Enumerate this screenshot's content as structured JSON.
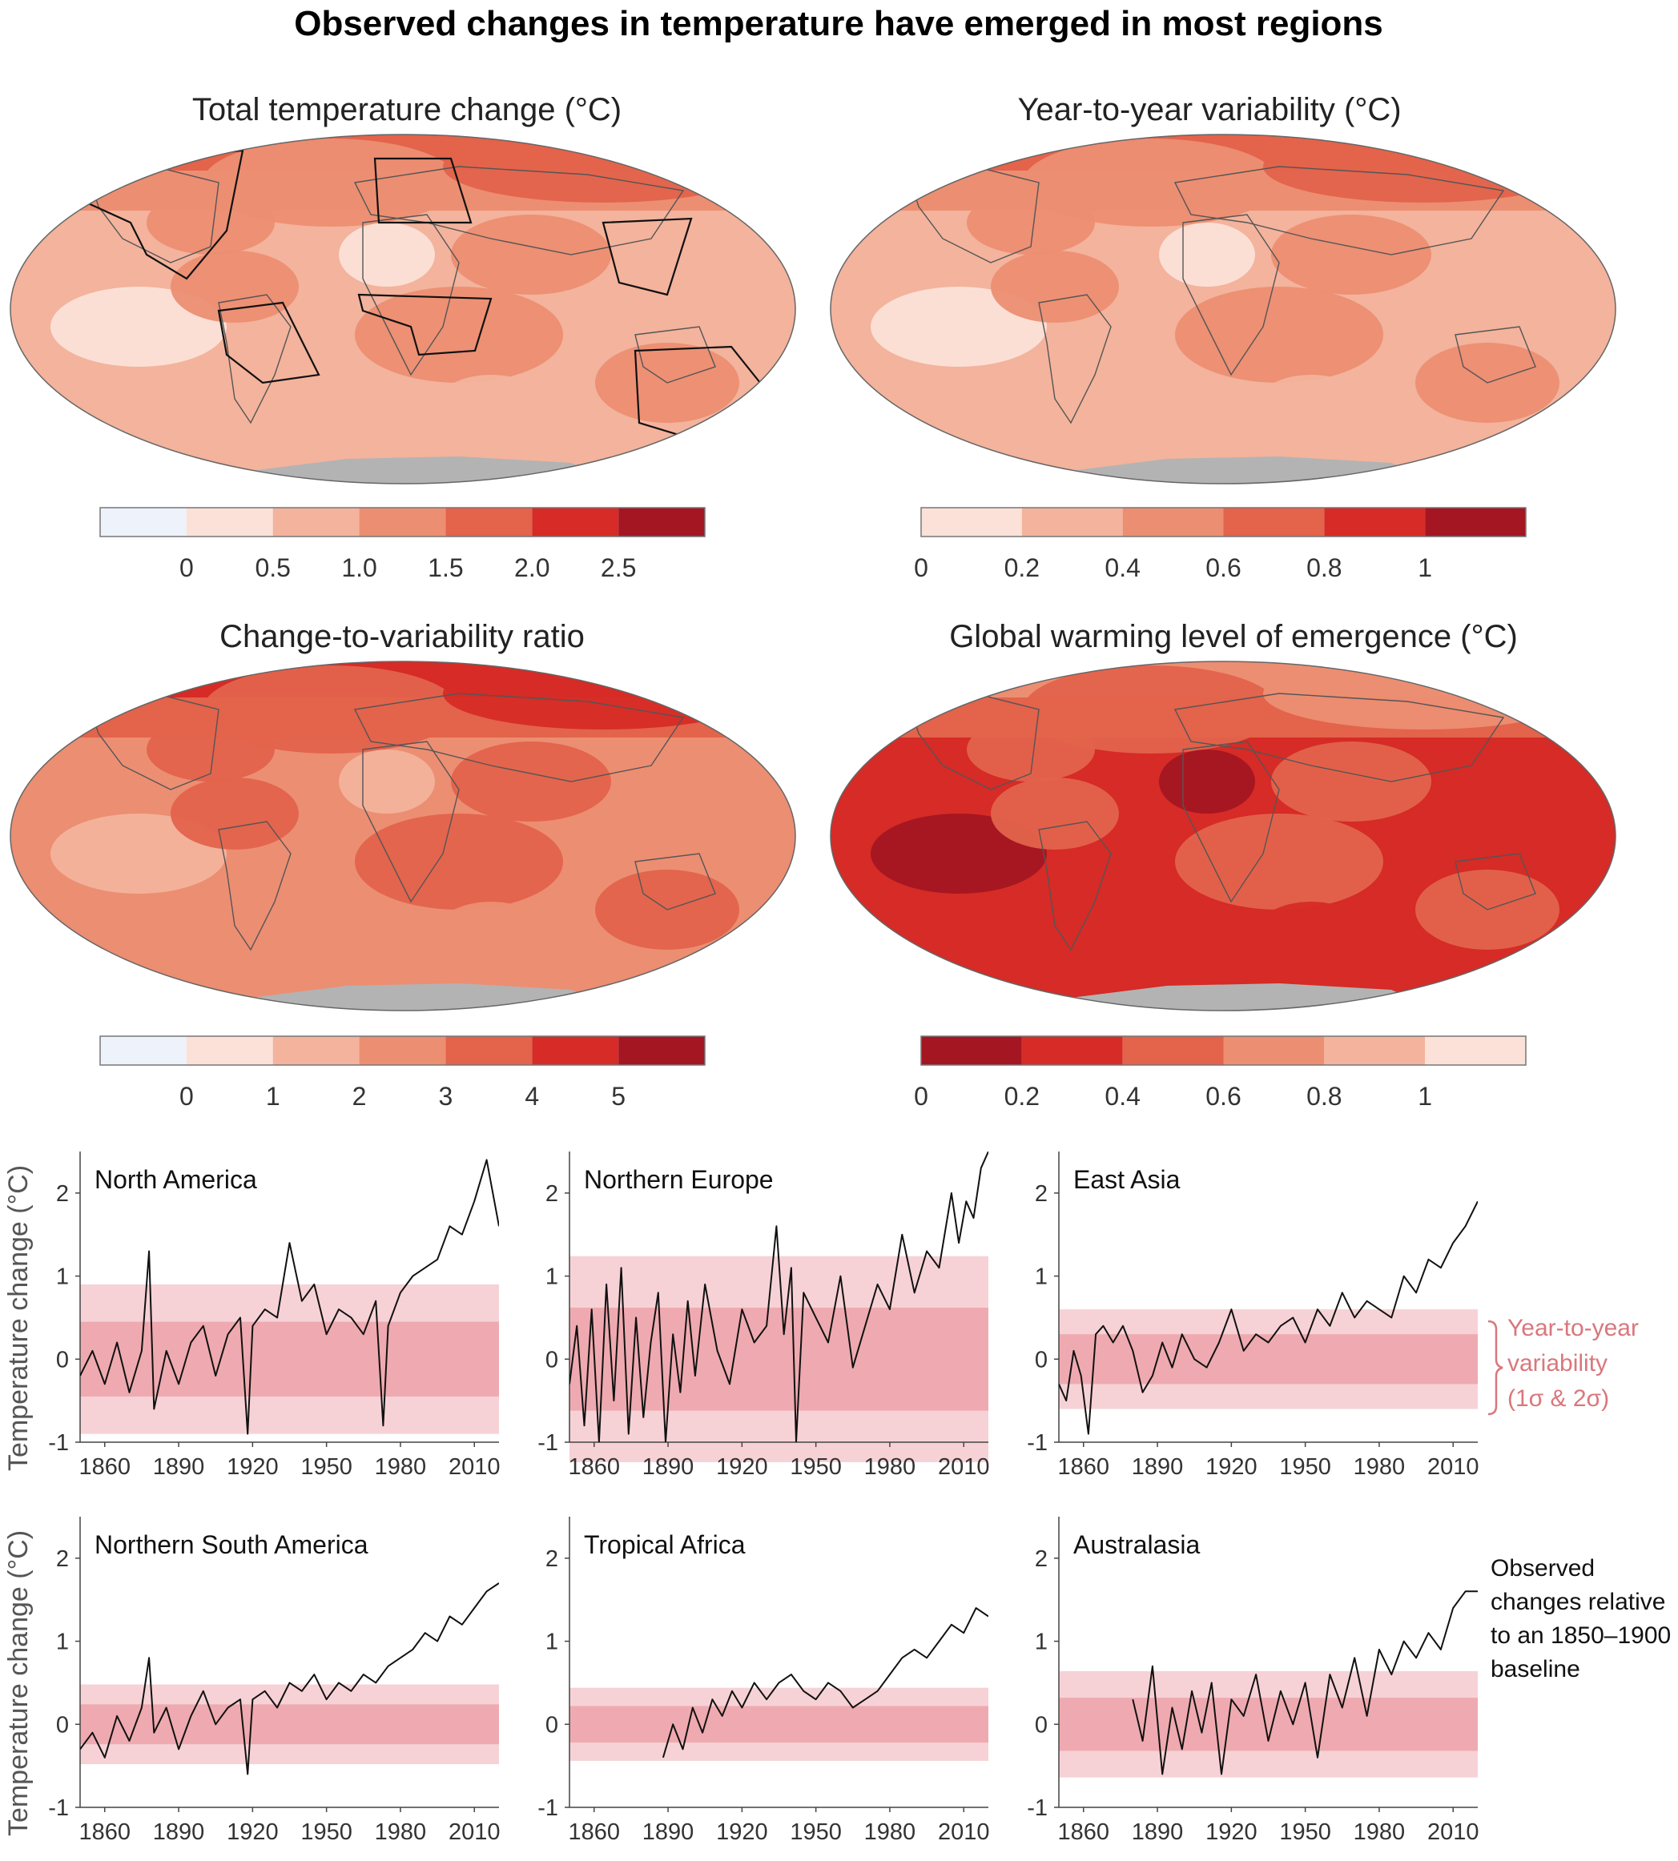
{
  "title": "Observed changes in temperature have emerged in most regions",
  "palettes": {
    "reds": [
      "#fbe1d8",
      "#f3b39c",
      "#ec8e72",
      "#e3634b",
      "#d62b26",
      "#a31622"
    ],
    "reds_with_blue": [
      "#eef2fa",
      "#fbe1d8",
      "#f3b39c",
      "#ec8e72",
      "#e3634b",
      "#d62b26",
      "#a31622"
    ],
    "reds_reversed": [
      "#a31622",
      "#d62b26",
      "#e3634b",
      "#ec8e72",
      "#f3b39c",
      "#fbe1d8"
    ],
    "missing": "#b3b3b3",
    "band_outer": "#f6d2d6",
    "band_inner": "#eeaab0"
  },
  "maps": [
    {
      "title": "Total temperature change (°C)",
      "ticks": [
        "0",
        "0.5",
        "1.0",
        "1.5",
        "2.0",
        "2.5"
      ],
      "palette": "reds_with_blue",
      "dominant_class": 2,
      "has_region_outlines": true
    },
    {
      "title": "Year-to-year variability (°C)",
      "ticks": [
        "0",
        "0.2",
        "0.4",
        "0.6",
        "0.8",
        "1"
      ],
      "palette": "reds",
      "dominant_class": 1,
      "has_region_outlines": false
    },
    {
      "title": "Change-to-variability ratio",
      "ticks": [
        "0",
        "1",
        "2",
        "3",
        "4",
        "5"
      ],
      "palette": "reds_with_blue",
      "dominant_class": 3,
      "has_region_outlines": false
    },
    {
      "title": "Global warming level of emergence (°C)",
      "ticks": [
        "0",
        "0.2",
        "0.4",
        "0.6",
        "0.8",
        "1"
      ],
      "palette": "reds_reversed",
      "dominant_class": 1,
      "has_region_outlines": false
    }
  ],
  "timeseries_axis": {
    "ylabel": "Temperature change (°C)",
    "x_ticks": [
      1860,
      1890,
      1920,
      1950,
      1980,
      2010
    ],
    "y_ticks": [
      -1,
      0,
      1,
      2
    ],
    "xlim": [
      1850,
      2020
    ],
    "ylim": [
      -1,
      2.5
    ]
  },
  "chart_data": [
    {
      "type": "line",
      "title": "North America",
      "sigma1": 0.45,
      "sigma2": 0.9,
      "series": [
        {
          "x": [
            1850,
            1855,
            1860,
            1865,
            1870,
            1875,
            1878,
            1880,
            1885,
            1890,
            1895,
            1900,
            1905,
            1910,
            1915,
            1918,
            1920,
            1925,
            1930,
            1935,
            1940,
            1945,
            1950,
            1955,
            1960,
            1965,
            1970,
            1973,
            1975,
            1980,
            1985,
            1990,
            1995,
            2000,
            2005,
            2010,
            2015,
            2020
          ],
          "y": [
            -0.2,
            0.1,
            -0.3,
            0.2,
            -0.4,
            0.1,
            1.3,
            -0.6,
            0.1,
            -0.3,
            0.2,
            0.4,
            -0.2,
            0.3,
            0.5,
            -0.9,
            0.4,
            0.6,
            0.5,
            1.4,
            0.7,
            0.9,
            0.3,
            0.6,
            0.5,
            0.3,
            0.7,
            -0.8,
            0.4,
            0.8,
            1.0,
            1.1,
            1.2,
            1.6,
            1.5,
            1.9,
            2.4,
            1.6
          ]
        }
      ]
    },
    {
      "type": "line",
      "title": "Northern Europe",
      "sigma1": 0.62,
      "sigma2": 1.24,
      "series": [
        {
          "x": [
            1850,
            1853,
            1856,
            1859,
            1862,
            1865,
            1868,
            1871,
            1874,
            1877,
            1880,
            1883,
            1886,
            1889,
            1892,
            1895,
            1898,
            1901,
            1905,
            1910,
            1915,
            1920,
            1925,
            1930,
            1934,
            1937,
            1940,
            1942,
            1945,
            1950,
            1955,
            1960,
            1965,
            1970,
            1975,
            1980,
            1985,
            1990,
            1995,
            2000,
            2005,
            2008,
            2011,
            2014,
            2017,
            2020
          ],
          "y": [
            -0.3,
            0.4,
            -0.8,
            0.6,
            -1.0,
            0.9,
            -0.5,
            1.1,
            -0.9,
            0.5,
            -0.7,
            0.2,
            0.8,
            -1.0,
            0.3,
            -0.4,
            0.7,
            -0.2,
            0.9,
            0.1,
            -0.3,
            0.6,
            0.2,
            0.4,
            1.6,
            0.3,
            1.1,
            -1.0,
            0.8,
            0.5,
            0.2,
            1.0,
            -0.1,
            0.4,
            0.9,
            0.6,
            1.5,
            0.8,
            1.3,
            1.1,
            2.0,
            1.4,
            1.9,
            1.7,
            2.3,
            2.5
          ]
        }
      ]
    },
    {
      "type": "line",
      "title": "East Asia",
      "sigma1": 0.3,
      "sigma2": 0.6,
      "series": [
        {
          "x": [
            1850,
            1853,
            1856,
            1859,
            1862,
            1865,
            1868,
            1872,
            1876,
            1880,
            1884,
            1888,
            1892,
            1896,
            1900,
            1905,
            1910,
            1915,
            1920,
            1925,
            1930,
            1935,
            1940,
            1945,
            1950,
            1955,
            1960,
            1965,
            1970,
            1975,
            1980,
            1985,
            1990,
            1995,
            2000,
            2005,
            2010,
            2015,
            2020
          ],
          "y": [
            -0.3,
            -0.5,
            0.1,
            -0.2,
            -0.9,
            0.3,
            0.4,
            0.2,
            0.4,
            0.1,
            -0.4,
            -0.2,
            0.2,
            -0.1,
            0.3,
            0.0,
            -0.1,
            0.2,
            0.6,
            0.1,
            0.3,
            0.2,
            0.4,
            0.5,
            0.2,
            0.6,
            0.4,
            0.8,
            0.5,
            0.7,
            0.6,
            0.5,
            1.0,
            0.8,
            1.2,
            1.1,
            1.4,
            1.6,
            1.9
          ]
        }
      ]
    },
    {
      "type": "line",
      "title": "Northern South America",
      "sigma1": 0.24,
      "sigma2": 0.48,
      "series": [
        {
          "x": [
            1850,
            1855,
            1860,
            1865,
            1870,
            1875,
            1878,
            1880,
            1885,
            1890,
            1895,
            1900,
            1905,
            1910,
            1915,
            1918,
            1920,
            1925,
            1930,
            1935,
            1940,
            1945,
            1950,
            1955,
            1960,
            1965,
            1970,
            1975,
            1980,
            1985,
            1990,
            1995,
            2000,
            2005,
            2010,
            2015,
            2020
          ],
          "y": [
            -0.3,
            -0.1,
            -0.4,
            0.1,
            -0.2,
            0.2,
            0.8,
            -0.1,
            0.2,
            -0.3,
            0.1,
            0.4,
            0.0,
            0.2,
            0.3,
            -0.6,
            0.3,
            0.4,
            0.2,
            0.5,
            0.4,
            0.6,
            0.3,
            0.5,
            0.4,
            0.6,
            0.5,
            0.7,
            0.8,
            0.9,
            1.1,
            1.0,
            1.3,
            1.2,
            1.4,
            1.6,
            1.7
          ]
        }
      ]
    },
    {
      "type": "line",
      "title": "Tropical Africa",
      "sigma1": 0.22,
      "sigma2": 0.44,
      "series": [
        {
          "x": [
            1888,
            1892,
            1896,
            1900,
            1904,
            1908,
            1912,
            1916,
            1920,
            1925,
            1930,
            1935,
            1940,
            1945,
            1950,
            1955,
            1960,
            1965,
            1970,
            1975,
            1980,
            1985,
            1990,
            1995,
            2000,
            2005,
            2010,
            2015,
            2020
          ],
          "y": [
            -0.4,
            0.0,
            -0.3,
            0.2,
            -0.1,
            0.3,
            0.1,
            0.4,
            0.2,
            0.5,
            0.3,
            0.5,
            0.6,
            0.4,
            0.3,
            0.5,
            0.4,
            0.2,
            0.3,
            0.4,
            0.6,
            0.8,
            0.9,
            0.8,
            1.0,
            1.2,
            1.1,
            1.4,
            1.3
          ]
        }
      ]
    },
    {
      "type": "line",
      "title": "Australasia",
      "sigma1": 0.32,
      "sigma2": 0.64,
      "series": [
        {
          "x": [
            1880,
            1884,
            1888,
            1892,
            1896,
            1900,
            1904,
            1908,
            1912,
            1916,
            1920,
            1925,
            1930,
            1935,
            1940,
            1945,
            1950,
            1955,
            1960,
            1965,
            1970,
            1975,
            1980,
            1985,
            1990,
            1995,
            2000,
            2005,
            2010,
            2015,
            2020
          ],
          "y": [
            0.3,
            -0.2,
            0.7,
            -0.6,
            0.2,
            -0.3,
            0.4,
            -0.1,
            0.5,
            -0.6,
            0.3,
            0.1,
            0.6,
            -0.2,
            0.4,
            0.0,
            0.5,
            -0.4,
            0.6,
            0.2,
            0.8,
            0.1,
            0.9,
            0.6,
            1.0,
            0.8,
            1.1,
            0.9,
            1.4,
            1.6,
            1.6
          ]
        }
      ]
    }
  ],
  "annotations": {
    "variability_lines": [
      "Year-to-year",
      "variability",
      "(1σ & 2σ)"
    ],
    "baseline_lines": [
      "Observed",
      "changes relative",
      "to an 1850–1900",
      "baseline"
    ]
  }
}
